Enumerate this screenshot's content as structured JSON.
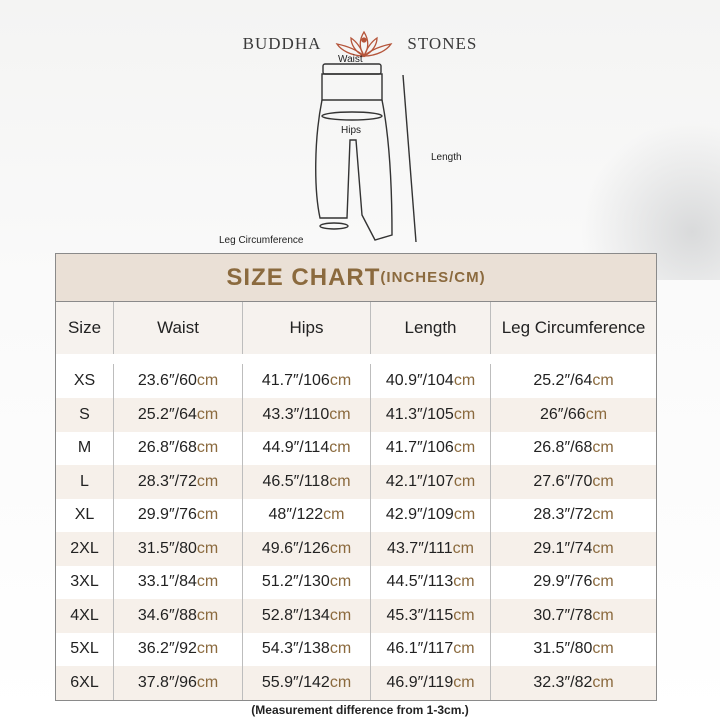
{
  "brand": {
    "left": "BUDDHA",
    "right": "STONES"
  },
  "diagram": {
    "waist": "Waist",
    "hips": "Hips",
    "length": "Length",
    "leg": "Leg Circumference"
  },
  "table": {
    "title": "SIZE CHART",
    "title_unit": "(INCHES/CM)",
    "headers": [
      "Size",
      "Waist",
      "Hips",
      "Length",
      "Leg Circumference"
    ],
    "unit": "cm",
    "rows": [
      [
        "XS",
        "23.6″/60",
        "41.7″/106",
        "40.9″/104",
        "25.2″/64"
      ],
      [
        "S",
        "25.2″/64",
        "43.3″/110",
        "41.3″/105",
        "26″/66"
      ],
      [
        "M",
        "26.8″/68",
        "44.9″/114",
        "41.7″/106",
        "26.8″/68"
      ],
      [
        "L",
        "28.3″/72",
        "46.5″/118",
        "42.1″/107",
        "27.6″/70"
      ],
      [
        "XL",
        "29.9″/76",
        "48″/122",
        "42.9″/109",
        "28.3″/72"
      ],
      [
        "2XL",
        "31.5″/80",
        "49.6″/126",
        "43.7″/111",
        "29.1″/74"
      ],
      [
        "3XL",
        "33.1″/84",
        "51.2″/130",
        "44.5″/113",
        "29.9″/76"
      ],
      [
        "4XL",
        "34.6″/88",
        "52.8″/134",
        "45.3″/115",
        "30.7″/78"
      ],
      [
        "5XL",
        "36.2″/92",
        "54.3″/138",
        "46.1″/117",
        "31.5″/80"
      ],
      [
        "6XL",
        "37.8″/96",
        "55.9″/142",
        "46.9″/119",
        "32.3″/82"
      ]
    ]
  },
  "note": "(Measurement difference from 1-3cm.)",
  "colors": {
    "accent": "#8b6a3e",
    "title_bg": "#eae0d6",
    "alt_row": "#f6f0ea"
  }
}
